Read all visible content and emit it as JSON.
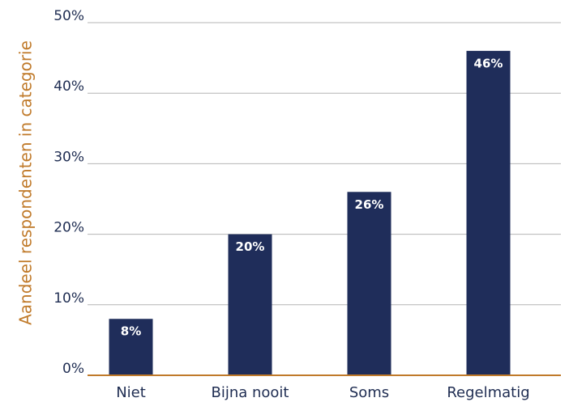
{
  "chart_data": {
    "type": "bar",
    "y_label": "Aandeel respondenten in categorie",
    "categories": [
      "Niet",
      "Bijna nooit",
      "Soms",
      "Regelmatig"
    ],
    "values": [
      8,
      20,
      26,
      46
    ],
    "value_labels": [
      "8%",
      "20%",
      "26%",
      "46%"
    ],
    "color": "#1f2d5a",
    "ylim": [
      0,
      50
    ],
    "yticks": [
      {
        "value": 0,
        "label": "0%"
      },
      {
        "value": 10,
        "label": "10%"
      },
      {
        "value": 20,
        "label": "20%"
      },
      {
        "value": 30,
        "label": "30%"
      },
      {
        "value": 40,
        "label": "40%"
      },
      {
        "value": 50,
        "label": "50%"
      }
    ],
    "grid": true
  }
}
